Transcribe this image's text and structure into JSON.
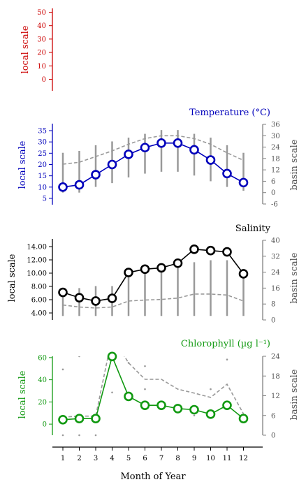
{
  "figure": {
    "xlabel": "Month of Year",
    "months": [
      "1",
      "2",
      "3",
      "4",
      "5",
      "6",
      "7",
      "8",
      "9",
      "10",
      "11",
      "12"
    ]
  },
  "colors": {
    "top": "#cc0000",
    "temperature": "#0000bb",
    "salinity": "#000000",
    "chlorophyll": "#119911",
    "basin": "#808080"
  },
  "chart_data": [
    {
      "type": "line",
      "title": "",
      "ylabel": "local scale",
      "ylim": [
        0,
        50
      ],
      "yticks": [
        "0",
        "10",
        "20",
        "30",
        "40",
        "50"
      ],
      "series": []
    },
    {
      "type": "line",
      "title": "Temperature (°C)",
      "ylabel": "local scale",
      "ylabel_right": "basin scale",
      "x": [
        1,
        2,
        3,
        4,
        5,
        6,
        7,
        8,
        9,
        10,
        11,
        12
      ],
      "local_ylim": [
        5,
        35
      ],
      "local_yticks": [
        "5",
        "10",
        "15",
        "20",
        "25",
        "30",
        "35"
      ],
      "basin_ylim": [
        -6,
        36
      ],
      "basin_yticks": [
        "-6",
        "0",
        "6",
        "12",
        "18",
        "24",
        "30",
        "36"
      ],
      "local_values": [
        10.0,
        11.0,
        15.5,
        20.0,
        24.5,
        27.5,
        29.5,
        29.5,
        26.5,
        22.0,
        16.0,
        12.0
      ],
      "basin_mean": [
        15.0,
        16.0,
        19.0,
        22.0,
        25.5,
        28.5,
        30.0,
        30.0,
        28.5,
        25.5,
        21.0,
        17.0
      ],
      "basin_range": [
        [
          0,
          21
        ],
        [
          0,
          22
        ],
        [
          3,
          25
        ],
        [
          5,
          27
        ],
        [
          8,
          29
        ],
        [
          10,
          31
        ],
        [
          11,
          33
        ],
        [
          11,
          33
        ],
        [
          9,
          31
        ],
        [
          6,
          29
        ],
        [
          3,
          25
        ],
        [
          1,
          21
        ]
      ]
    },
    {
      "type": "line",
      "title": "Salinity",
      "ylabel": "local scale",
      "ylabel_right": "basin scale",
      "x": [
        1,
        2,
        3,
        4,
        5,
        6,
        7,
        8,
        9,
        10,
        11,
        12
      ],
      "local_ylim": [
        4,
        14
      ],
      "local_yticks": [
        "4.00",
        "6.00",
        "8.00",
        "10.00",
        "12.00",
        "14.00"
      ],
      "basin_ylim": [
        0,
        40
      ],
      "basin_yticks": [
        "0",
        "8",
        "16",
        "24",
        "32",
        "40"
      ],
      "local_values": [
        7.1,
        6.3,
        5.8,
        6.2,
        10.1,
        10.6,
        10.8,
        11.5,
        13.6,
        13.4,
        13.2,
        9.9
      ],
      "basin_mean": [
        7.5,
        6.5,
        6.0,
        6.5,
        9.5,
        10.0,
        10.3,
        11.0,
        13.0,
        13.0,
        12.5,
        9.5
      ],
      "basin_range": [
        [
          2,
          14
        ],
        [
          2,
          16
        ],
        [
          2,
          17
        ],
        [
          2,
          17
        ],
        [
          2,
          22
        ],
        [
          2,
          24
        ],
        [
          2,
          24
        ],
        [
          2,
          28
        ],
        [
          2,
          29
        ],
        [
          2,
          30
        ],
        [
          2,
          30
        ],
        [
          2,
          25
        ]
      ]
    },
    {
      "type": "line",
      "title": "Chlorophyll (µg l⁻¹)",
      "ylabel": "local scale",
      "ylabel_right": "basin scale",
      "x": [
        1,
        2,
        3,
        4,
        5,
        6,
        7,
        8,
        9,
        10,
        11,
        12
      ],
      "local_ylim": [
        -10,
        70
      ],
      "local_yticks": [
        "0",
        "20",
        "40",
        "60"
      ],
      "basin_ylim": [
        0,
        24
      ],
      "basin_yticks": [
        "0",
        "6",
        "12",
        "18",
        "24"
      ],
      "local_values": [
        4,
        5,
        5,
        61,
        25,
        17,
        17,
        14,
        13,
        9,
        17,
        5
      ],
      "basin_mean": [
        5.5,
        5.8,
        5.8,
        30,
        22,
        17,
        17,
        14,
        12.8,
        11.5,
        15.5,
        6.5
      ],
      "scatter": [
        [
          1,
          0
        ],
        [
          1,
          20
        ],
        [
          2,
          0
        ],
        [
          2,
          24
        ],
        [
          3,
          0
        ],
        [
          4,
          13
        ],
        [
          4,
          46
        ],
        [
          5,
          22
        ],
        [
          6,
          14
        ],
        [
          6,
          21
        ],
        [
          7,
          60
        ],
        [
          7,
          62
        ],
        [
          8,
          28
        ],
        [
          9,
          70
        ],
        [
          9,
          45
        ],
        [
          9,
          6
        ],
        [
          10,
          14
        ],
        [
          11,
          23
        ],
        [
          12,
          4
        ]
      ]
    }
  ]
}
